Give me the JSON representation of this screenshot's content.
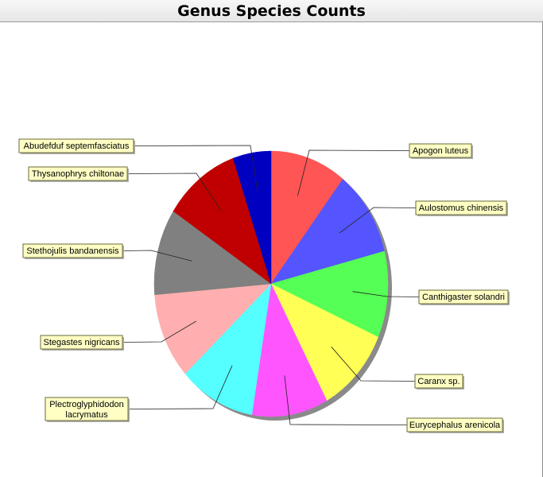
{
  "title": "Genus Species Counts",
  "chart_data": {
    "type": "pie",
    "title": "Genus Species Counts",
    "start_angle_deg": 90,
    "direction": "clockwise",
    "shadow": true,
    "slices": [
      {
        "label": "Apogon luteus",
        "value": 1,
        "color": "#ff5555"
      },
      {
        "label": "Aulostomus chinensis",
        "value": 1,
        "color": "#5555ff"
      },
      {
        "label": "Canthigaster solandri",
        "value": 1,
        "color": "#55ff55"
      },
      {
        "label": "Caranx sp.",
        "value": 1,
        "color": "#ffff55"
      },
      {
        "label": "Eurycephalus arenicola",
        "value": 1,
        "color": "#ff55ff"
      },
      {
        "label": "Plectroglyphidodon lacrymatus",
        "value": 1,
        "color": "#55ffff"
      },
      {
        "label": "Stegastes nigricans",
        "value": 1,
        "color": "#ffafaf"
      },
      {
        "label": "Stethojulis bandanensis",
        "value": 1,
        "color": "#808080"
      },
      {
        "label": "Thysanophrys chiltonae",
        "value": 1,
        "color": "#c00000"
      },
      {
        "label": "Abudefduf septemfasciatus",
        "value": 0.5,
        "color": "#0000c0"
      }
    ]
  }
}
